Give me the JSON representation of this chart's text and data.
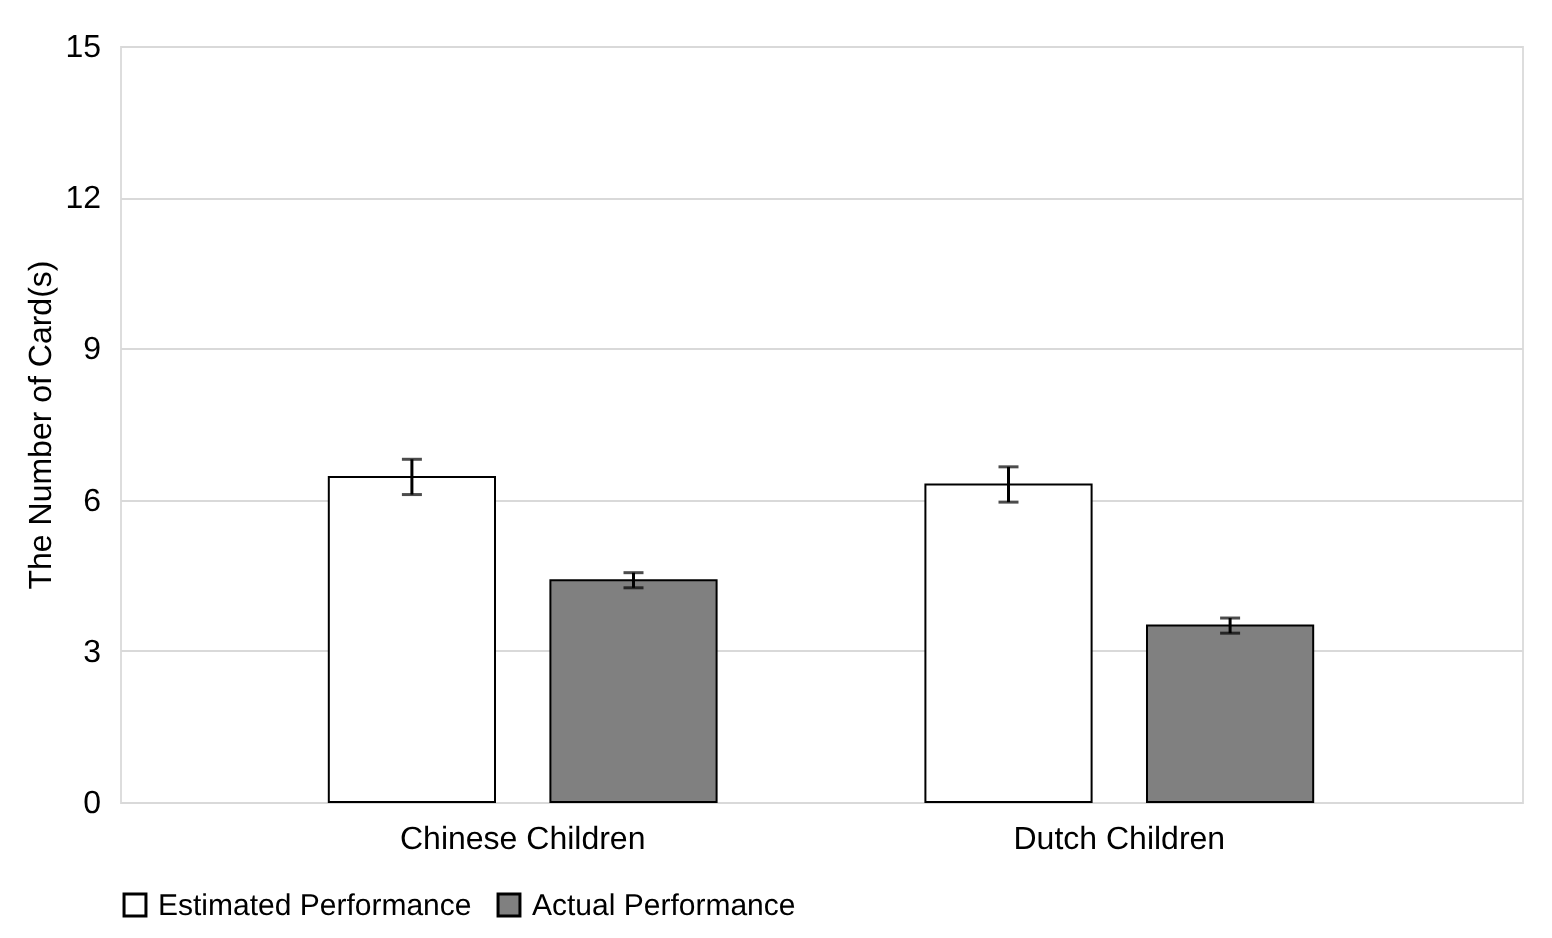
{
  "chart_data": {
    "type": "bar",
    "ylabel": "The Number of Card(s)",
    "categories": [
      "Chinese Children",
      "Dutch Children"
    ],
    "series": [
      {
        "name": "Estimated Performance",
        "color": "#ffffff",
        "values": [
          6.45,
          6.3
        ],
        "errors": [
          0.35,
          0.35
        ]
      },
      {
        "name": "Actual Performance",
        "color": "#808080",
        "values": [
          4.4,
          3.5
        ],
        "errors": [
          0.15,
          0.15
        ]
      }
    ],
    "ylim": [
      0,
      15
    ],
    "yticks": [
      0,
      3,
      6,
      9,
      12,
      15
    ],
    "grid": "y",
    "legend": "bottom"
  }
}
